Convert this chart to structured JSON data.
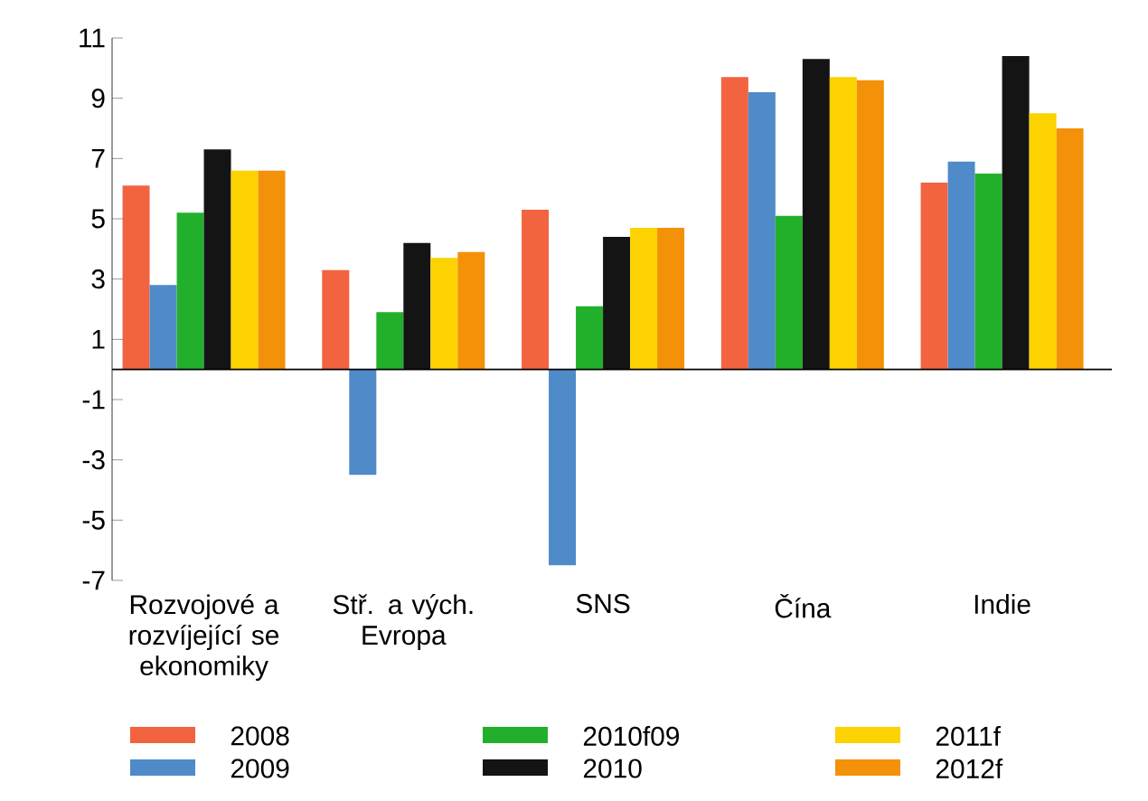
{
  "chart_data": {
    "type": "bar",
    "categories": [
      "Rozvojové a rozvíjející se ekonomiky",
      "Stř. a vých. Evropa",
      "SNS",
      "Čína",
      "Indie"
    ],
    "series": [
      {
        "name": "2008",
        "color": "#f26340",
        "values": [
          6.1,
          3.3,
          5.3,
          9.7,
          6.2
        ]
      },
      {
        "name": "2009",
        "color": "#4f8ac9",
        "values": [
          2.8,
          -3.5,
          -6.5,
          9.2,
          6.9
        ]
      },
      {
        "name": "2010f09",
        "color": "#22b02c",
        "values": [
          5.2,
          1.9,
          2.1,
          5.1,
          6.5
        ]
      },
      {
        "name": "2010",
        "color": "#141414",
        "values": [
          7.3,
          4.2,
          4.4,
          10.3,
          10.4
        ]
      },
      {
        "name": "2011f",
        "color": "#fcd200",
        "values": [
          6.6,
          3.7,
          4.7,
          9.7,
          8.5
        ]
      },
      {
        "name": "2012f",
        "color": "#f39208",
        "values": [
          6.6,
          3.9,
          4.7,
          9.6,
          8.0
        ]
      }
    ],
    "ylim": [
      -7,
      11
    ],
    "yticks": [
      -7,
      -5,
      -3,
      -1,
      1,
      3,
      5,
      7,
      9,
      11
    ],
    "legend": "bottom"
  }
}
